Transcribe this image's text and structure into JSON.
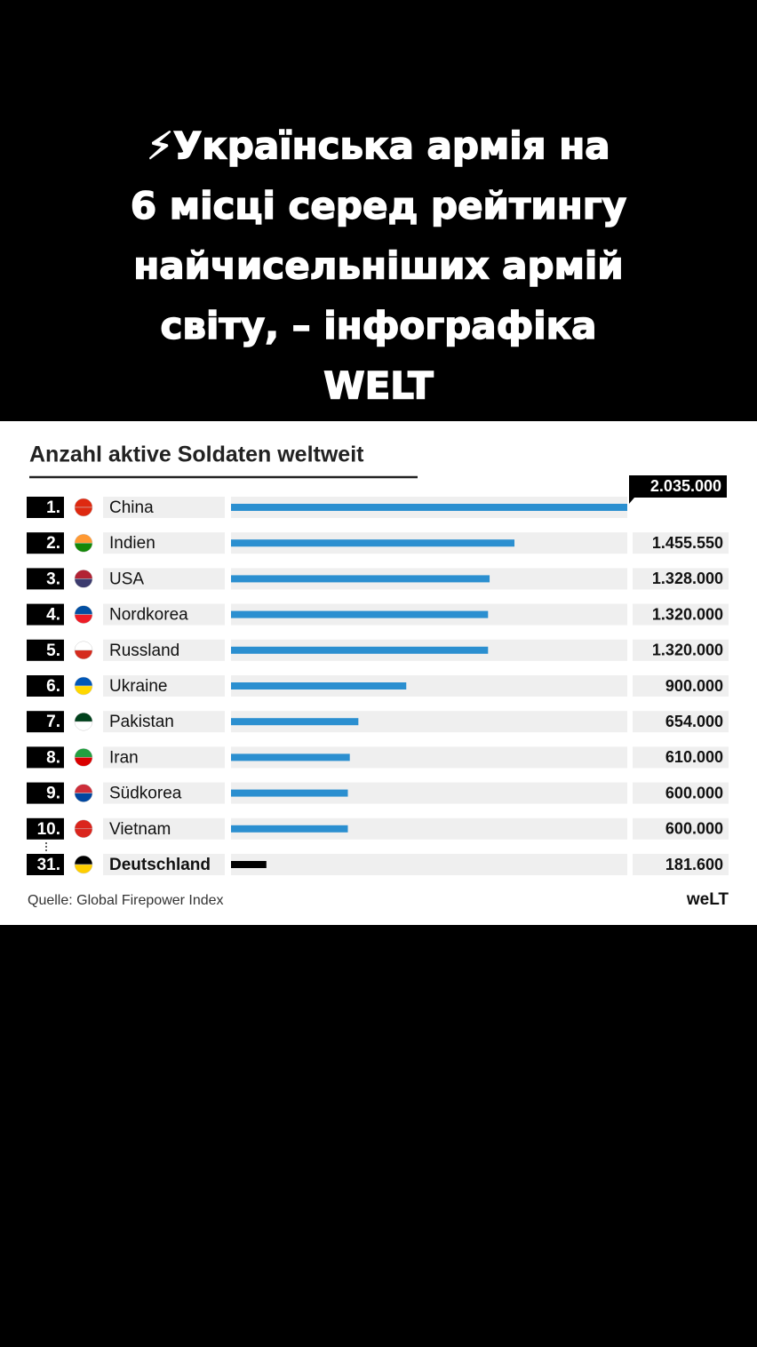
{
  "header": {
    "lines": [
      "⚡Українська армія на",
      "6 місці серед рейтингу",
      "найчисельніших армій",
      "світу, – інфографіка",
      "WELT"
    ]
  },
  "chart_data": {
    "type": "bar",
    "orientation": "horizontal",
    "title": "Anzahl aktive Soldaten weltweit",
    "ranks": [
      "1.",
      "2.",
      "3.",
      "4.",
      "5.",
      "6.",
      "7.",
      "8.",
      "9.",
      "10.",
      "31."
    ],
    "categories": [
      "China",
      "Indien",
      "USA",
      "Nordkorea",
      "Russland",
      "Ukraine",
      "Pakistan",
      "Iran",
      "Südkorea",
      "Vietnam",
      "Deutschland"
    ],
    "values": [
      2035000,
      1455550,
      1328000,
      1320000,
      1320000,
      900000,
      654000,
      610000,
      600000,
      600000,
      181600
    ],
    "value_labels": [
      "2.035.000",
      "1.455.550",
      "1.328.000",
      "1.320.000",
      "1.320.000",
      "900.000",
      "654.000",
      "610.000",
      "600.000",
      "600.000",
      "181.600"
    ],
    "colors": [
      "#2b8fd0",
      "#2b8fd0",
      "#2b8fd0",
      "#2b8fd0",
      "#2b8fd0",
      "#2b8fd0",
      "#2b8fd0",
      "#2b8fd0",
      "#2b8fd0",
      "#2b8fd0",
      "#000000"
    ],
    "xlim": [
      0,
      2035000
    ],
    "source": "Quelle: Global Firepower Index",
    "brand": "weLT"
  }
}
